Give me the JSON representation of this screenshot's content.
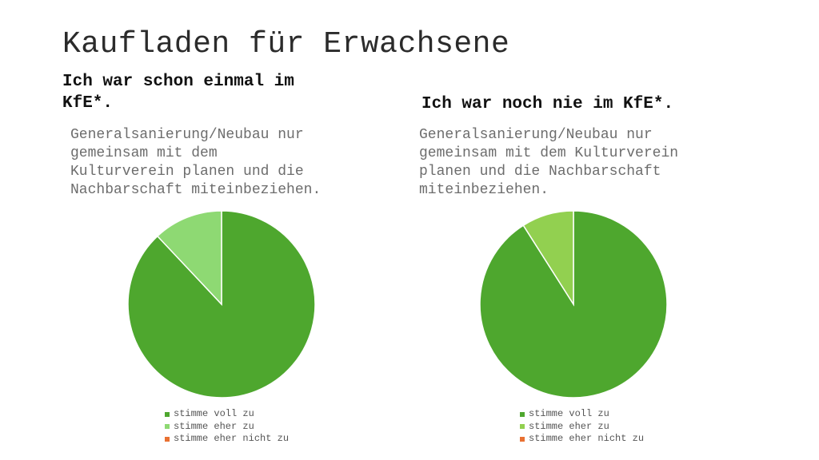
{
  "page": {
    "title": "Kaufladen für Erwachsene"
  },
  "charts": {
    "left": {
      "heading_line1": "Ich war schon einmal im",
      "heading_line2": "KfE*.",
      "subtitle_lines": [
        "Generalsanierung/Neubau nur",
        "gemeinsam mit dem",
        "Kulturverein planen und die",
        "Nachbarschaft miteinbeziehen."
      ]
    },
    "right": {
      "heading": "Ich war noch nie im KfE*.",
      "subtitle_lines": [
        "Generalsanierung/Neubau nur",
        "gemeinsam mit dem Kulturverein",
        "planen und die Nachbarschaft",
        "miteinbeziehen."
      ]
    }
  },
  "chart_data": [
    {
      "type": "pie",
      "title": "Ich war schon einmal im KfE*.",
      "labels": [
        "stimme voll zu",
        "stimme eher zu",
        "stimme eher nicht zu"
      ],
      "values": [
        88,
        12,
        0
      ],
      "colors": [
        "#4ea72e",
        "#8ed973",
        "#e97132"
      ],
      "legend": "bottom"
    },
    {
      "type": "pie",
      "title": "Ich war noch nie im KfE*.",
      "labels": [
        "stimme voll zu",
        "stimme eher zu",
        "stimme eher nicht zu"
      ],
      "values": [
        91,
        9,
        0
      ],
      "colors": [
        "#4ea72e",
        "#92d050",
        "#e97132"
      ],
      "legend": "bottom"
    }
  ]
}
